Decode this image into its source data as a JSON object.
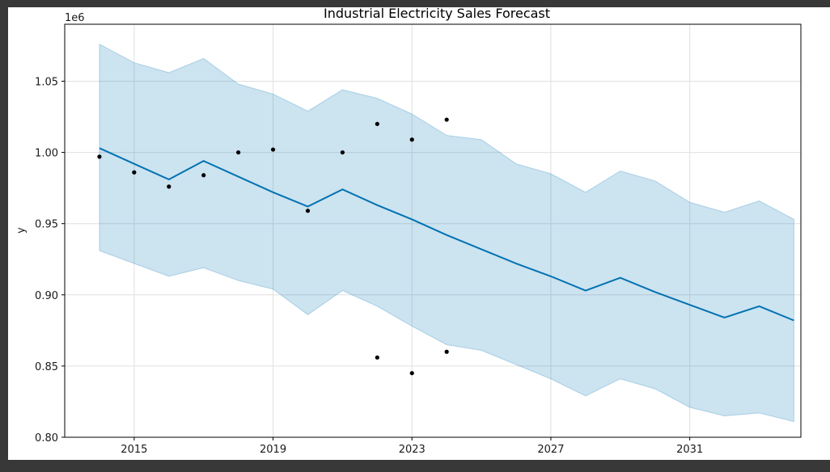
{
  "chart_data": {
    "type": "line",
    "title": "Industrial Electricity Sales Forecast",
    "xlabel": "",
    "ylabel": "y",
    "y_offset_label": "1e6",
    "xlim": [
      2013,
      2034.2
    ],
    "ylim": [
      0.8,
      1.09
    ],
    "x_ticks": [
      2015,
      2019,
      2023,
      2027,
      2031
    ],
    "x_tick_labels": [
      "2015",
      "2019",
      "2023",
      "2027",
      "2031"
    ],
    "y_ticks": [
      0.8,
      0.85,
      0.9,
      0.95,
      1.0,
      1.05
    ],
    "y_tick_labels": [
      "0.80",
      "0.85",
      "0.90",
      "0.95",
      "1.00",
      "1.05"
    ],
    "grid": true,
    "colors": {
      "forecast": "#0072b2",
      "interval": "#0072b2",
      "observed": "#000000",
      "background": "#383838"
    },
    "observed": {
      "x": [
        2014,
        2015,
        2016,
        2017,
        2018,
        2019,
        2020,
        2021,
        2022,
        2022,
        2023,
        2023,
        2024,
        2024
      ],
      "y": [
        0.997,
        0.986,
        0.976,
        0.984,
        1.0,
        1.002,
        0.959,
        1.0,
        1.02,
        0.856,
        1.009,
        0.845,
        1.023,
        0.86
      ]
    },
    "forecast": {
      "x": [
        2014,
        2015,
        2016,
        2017,
        2018,
        2019,
        2020,
        2021,
        2022,
        2023,
        2024,
        2025,
        2026,
        2027,
        2028,
        2029,
        2030,
        2031,
        2032,
        2033,
        2034
      ],
      "yhat": [
        1.003,
        0.992,
        0.981,
        0.994,
        0.983,
        0.972,
        0.962,
        0.974,
        0.963,
        0.953,
        0.942,
        0.932,
        0.922,
        0.913,
        0.903,
        0.912,
        0.902,
        0.893,
        0.884,
        0.892,
        0.882
      ],
      "lower": [
        0.931,
        0.922,
        0.913,
        0.919,
        0.91,
        0.904,
        0.886,
        0.903,
        0.892,
        0.878,
        0.865,
        0.861,
        0.851,
        0.841,
        0.829,
        0.841,
        0.834,
        0.821,
        0.815,
        0.817,
        0.811
      ],
      "upper": [
        1.076,
        1.063,
        1.056,
        1.066,
        1.048,
        1.041,
        1.029,
        1.044,
        1.038,
        1.027,
        1.012,
        1.009,
        0.992,
        0.985,
        0.972,
        0.987,
        0.98,
        0.965,
        0.958,
        0.966,
        0.953
      ]
    }
  }
}
